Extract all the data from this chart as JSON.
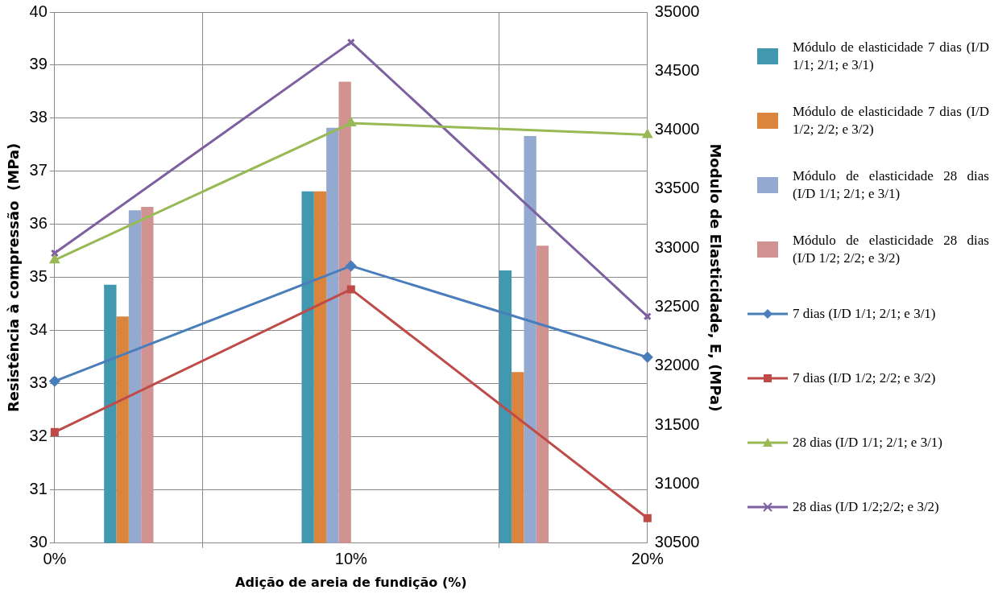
{
  "chart_data": {
    "type": "bar",
    "xlabel": "Adição de areia de fundição (%)",
    "ylabel": "Resistência à compressão  (MPa)",
    "y2label": "Modulo de Elasticidade, E, (MPa)",
    "categories": [
      "0%",
      "10%",
      "20%"
    ],
    "ylim": [
      30,
      40
    ],
    "yticks": [
      30,
      31,
      32,
      33,
      34,
      35,
      36,
      37,
      38,
      39,
      40
    ],
    "y2lim": [
      30500,
      35000
    ],
    "y2ticks": [
      30500,
      31000,
      31500,
      32000,
      32500,
      33000,
      33500,
      34000,
      34500,
      35000
    ],
    "grid": true,
    "legend": "right",
    "series": [
      {
        "name": "Módulo de elasticidade 7 dias (I/D 1/1; 2/1; e 3/1)",
        "type": "bar",
        "axis": "y2",
        "color": "#4198af",
        "values": [
          32690,
          33480,
          32810
        ]
      },
      {
        "name": "Módulo de elasticidade 7 dias (I/D 1/2; 2/2; e 3/2)",
        "type": "bar",
        "axis": "y2",
        "color": "#db843d",
        "values": [
          32420,
          33480,
          31950
        ]
      },
      {
        "name": "Módulo de elasticidade 28 dias (I/D 1/1; 2/1; e 3/1)",
        "type": "bar",
        "axis": "y2",
        "color": "#93a9cf",
        "values": [
          33320,
          34020,
          33950
        ]
      },
      {
        "name": "Módulo de elasticidade 28 dias (I/D 1/2; 2/2; e 3/2)",
        "type": "bar",
        "axis": "y2",
        "color": "#d19392",
        "values": [
          33350,
          34410,
          33020
        ]
      },
      {
        "name": "7 dias (I/D 1/1; 2/1; e 3/1)",
        "type": "line",
        "axis": "y",
        "marker": "diamond",
        "color": "#4a7ebb",
        "values": [
          33.05,
          35.22,
          33.5
        ]
      },
      {
        "name": "7 dias (I/D 1/2; 2/2; e 3/2)",
        "type": "line",
        "axis": "y",
        "marker": "square",
        "color": "#be4b48",
        "values": [
          32.09,
          34.78,
          30.47
        ]
      },
      {
        "name": "28 dias (I/D 1/1; 2/1; e 3/1)",
        "type": "line",
        "axis": "y",
        "marker": "triangle",
        "color": "#98b954",
        "values": [
          35.33,
          37.91,
          37.69
        ]
      },
      {
        "name": "28 dias (I/D 1/2;2/2; e 3/2)",
        "type": "line",
        "axis": "y",
        "marker": "cross",
        "color": "#7d60a0",
        "values": [
          35.46,
          39.43,
          34.27
        ]
      }
    ]
  }
}
